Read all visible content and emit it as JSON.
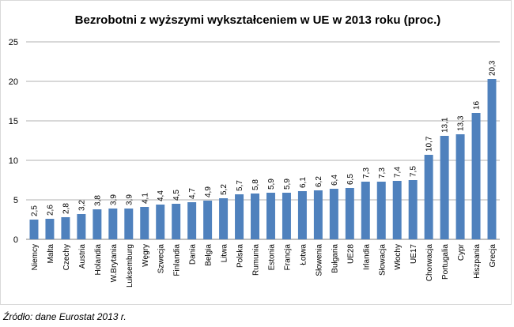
{
  "chart_data": {
    "type": "bar",
    "title": "Bezrobotni z wyższymi wykształceniem w UE w 2013 roku (proc.)",
    "xlabel": "",
    "ylabel": "",
    "ylim": [
      0,
      25
    ],
    "yticks": [
      0,
      5,
      10,
      15,
      20,
      25
    ],
    "grid": true,
    "legend": "none",
    "bar_color": "#4f81bd",
    "categories": [
      "Niemcy",
      "Malta",
      "Czechy",
      "Austria",
      "Holandia",
      "W.Brytania",
      "Luksemburg",
      "Węgry",
      "Szwecja",
      "Finlandia",
      "Dania",
      "Belgia",
      "Litwa",
      "Polska",
      "Rumunia",
      "Estonia",
      "Francja",
      "Łotwa",
      "Słowenia",
      "Bułgaria",
      "UE28",
      "Irlandia",
      "Słowacja",
      "Włochy",
      "UE17",
      "Chorwacja",
      "Portugalia",
      "Cypr",
      "Hiszpania",
      "Grecja"
    ],
    "values": [
      2.5,
      2.6,
      2.8,
      3.2,
      3.8,
      3.9,
      3.9,
      4.1,
      4.4,
      4.5,
      4.7,
      4.9,
      5.2,
      5.7,
      5.8,
      5.9,
      5.9,
      6.1,
      6.2,
      6.4,
      6.5,
      7.3,
      7.3,
      7.4,
      7.5,
      10.7,
      13.1,
      13.3,
      16,
      20.3
    ],
    "data_labels": [
      "2,5",
      "2,6",
      "2,8",
      "3,2",
      "3,8",
      "3,9",
      "3,9",
      "4,1",
      "4,4",
      "4,5",
      "4,7",
      "4,9",
      "5,2",
      "5,7",
      "5,8",
      "5,9",
      "5,9",
      "6,1",
      "6,2",
      "6,4",
      "6,5",
      "7,3",
      "7,3",
      "7,4",
      "7,5",
      "10,7",
      "13,1",
      "13,3",
      "16",
      "20,3"
    ],
    "source": "Źródło: dane  Eurostat 2013 r."
  }
}
